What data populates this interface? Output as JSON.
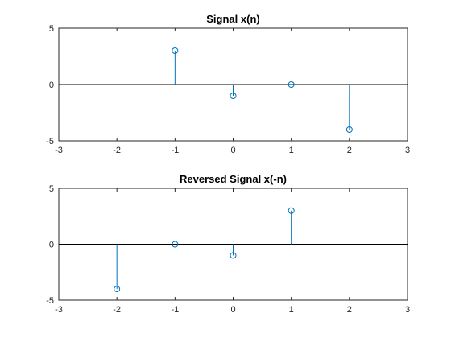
{
  "chart_data": [
    {
      "type": "stem",
      "title": "Signal x(n)",
      "xlabel": "",
      "ylabel": "",
      "xlim": [
        -3,
        3
      ],
      "ylim": [
        -5,
        5
      ],
      "xticks": [
        -3,
        -2,
        -1,
        0,
        1,
        2,
        3
      ],
      "yticks": [
        -5,
        0,
        5
      ],
      "grid": false,
      "series": [
        {
          "x": [
            -1,
            0,
            1,
            2
          ],
          "y": [
            3,
            -1,
            0,
            -4
          ]
        }
      ]
    },
    {
      "type": "stem",
      "title": "Reversed Signal x(-n)",
      "xlabel": "",
      "ylabel": "",
      "xlim": [
        -3,
        3
      ],
      "ylim": [
        -5,
        5
      ],
      "xticks": [
        -3,
        -2,
        -1,
        0,
        1,
        2,
        3
      ],
      "yticks": [
        -5,
        0,
        5
      ],
      "grid": false,
      "series": [
        {
          "x": [
            -2,
            -1,
            0,
            1
          ],
          "y": [
            -4,
            0,
            -1,
            3
          ]
        }
      ]
    }
  ],
  "colors": {
    "stem": "#0072bd",
    "axis": "#262626",
    "baseline": "#000000",
    "background": "#ffffff"
  }
}
